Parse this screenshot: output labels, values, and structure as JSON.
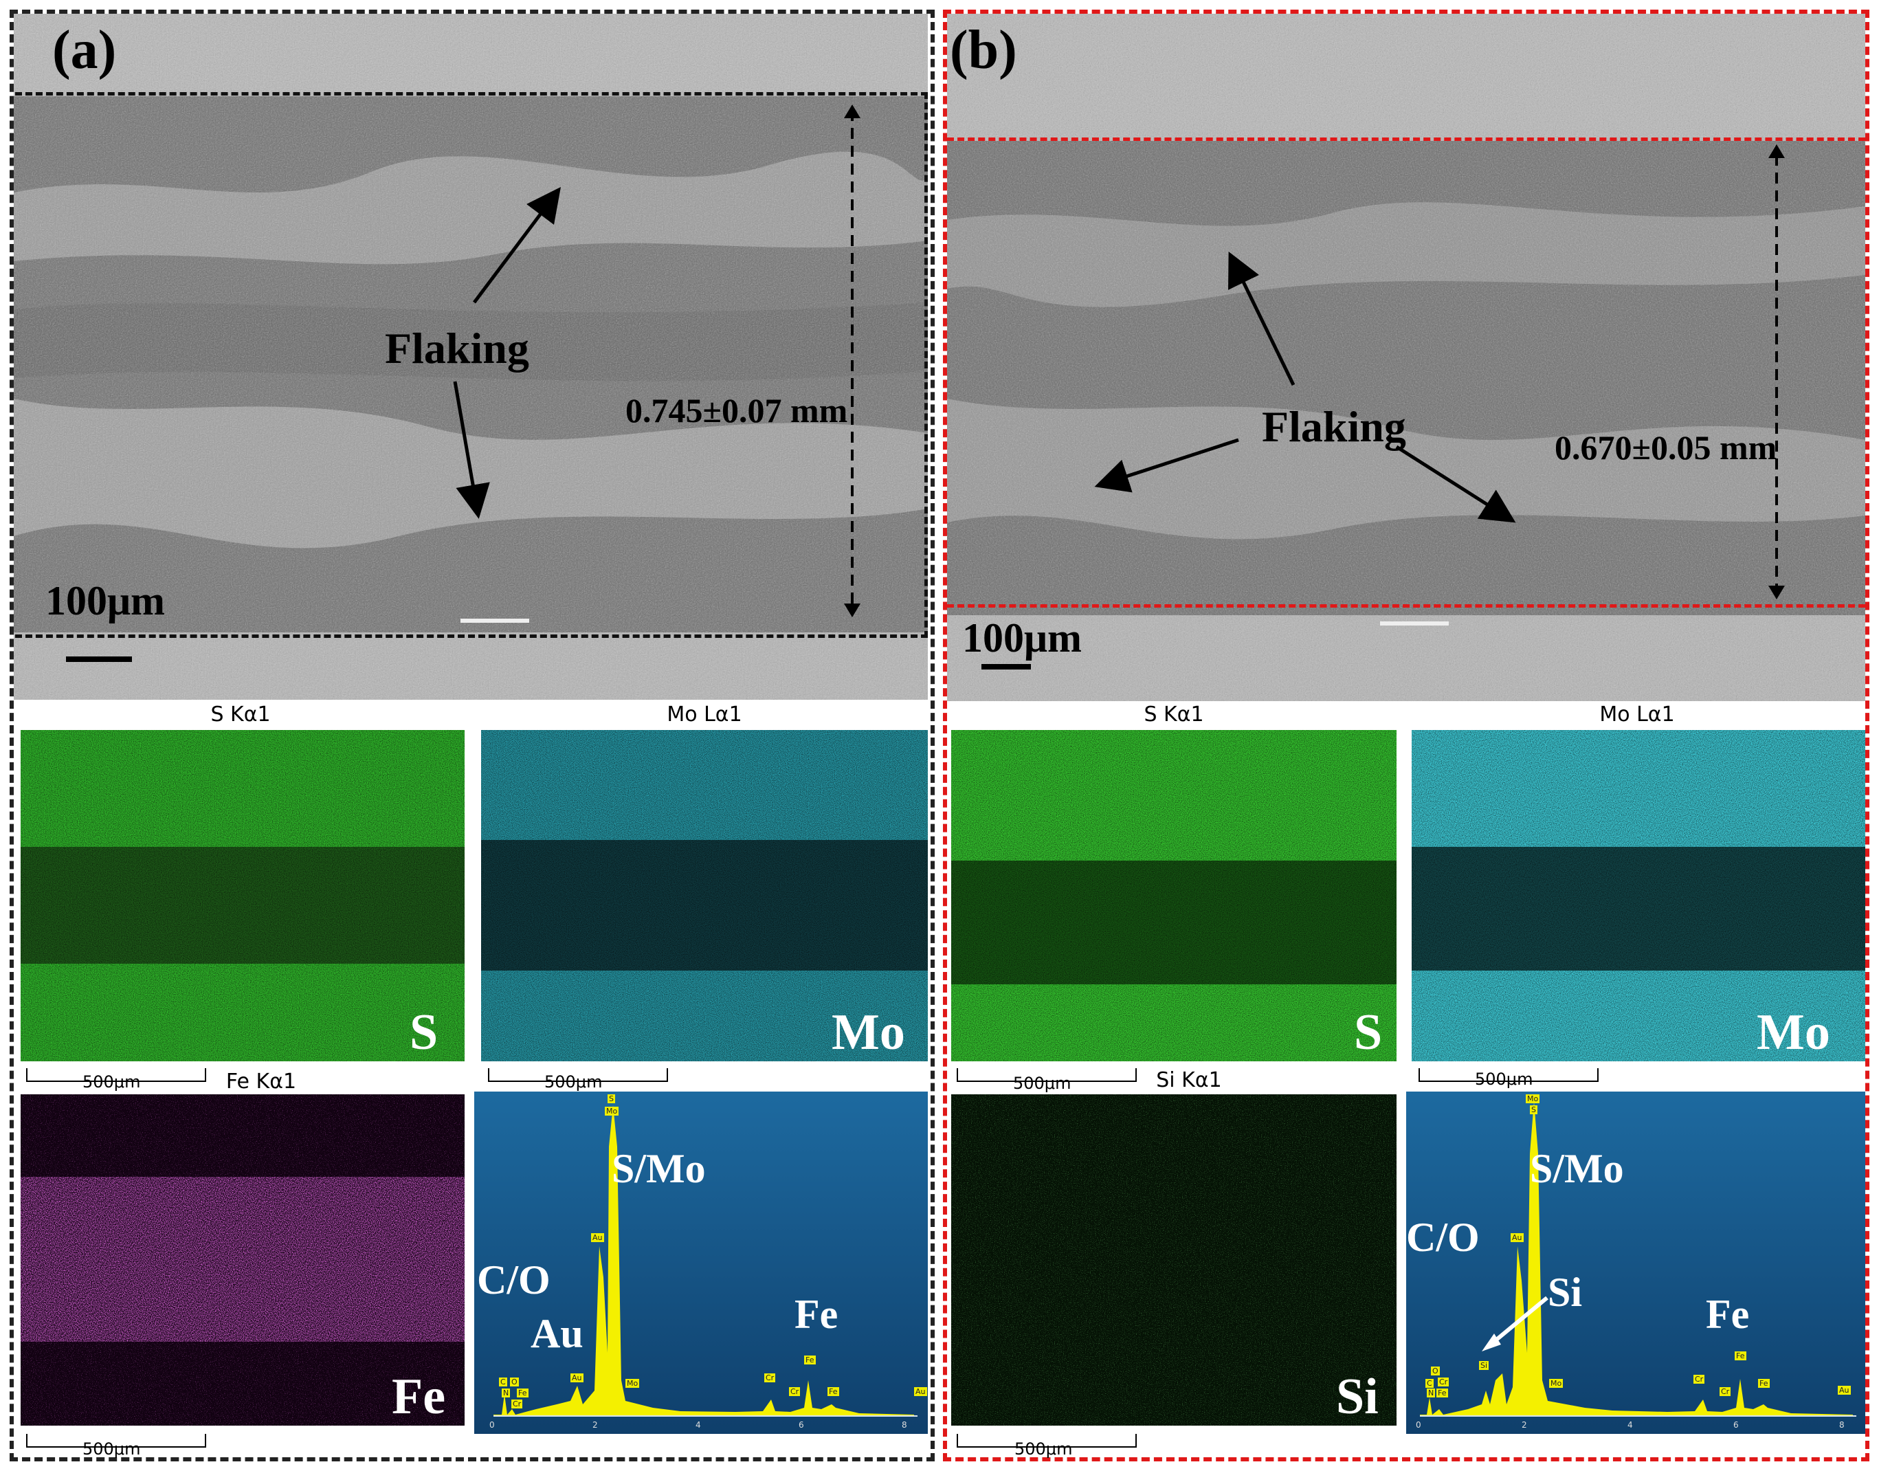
{
  "panel_a": {
    "label": "(a)",
    "flaking": "Flaking",
    "width_measure": "0.745±0.07 mm",
    "scalebar": "100μm",
    "maps": [
      {
        "title": "S Kα1",
        "element": "S",
        "scalebar": "500μm",
        "color": "#2fd52a"
      },
      {
        "title": "Mo Lα1",
        "element": "Mo",
        "scalebar": "500μm",
        "color": "#27a9b8"
      },
      {
        "title": "Fe Kα1",
        "element": "Fe",
        "scalebar": "500μm",
        "color": "#e028e0"
      }
    ],
    "spectrum": {
      "labels": {
        "smo": "S/Mo",
        "co": "C/O",
        "au": "Au",
        "fe": "Fe"
      },
      "peaks": [
        "C",
        "O",
        "N",
        "Fe",
        "Cr",
        "Au",
        "Au",
        "Mo",
        "S",
        "Mo",
        "Cr",
        "Cr",
        "Fe",
        "Fe",
        "Au"
      ],
      "axis_ticks": [
        "0",
        "2",
        "4",
        "6",
        "8"
      ]
    }
  },
  "panel_b": {
    "label": "(b)",
    "flaking": "Flaking",
    "width_measure": "0.670±0.05 mm",
    "scalebar": "100μm",
    "maps": [
      {
        "title": "S Kα1",
        "element": "S",
        "scalebar": "500μm",
        "color": "#2fd52a"
      },
      {
        "title": "Mo Lα1",
        "element": "Mo",
        "scalebar": "500μm",
        "color": "#3bc4d0"
      },
      {
        "title": "Si Kα1",
        "element": "Si",
        "scalebar": "500μm",
        "color": "#1c8a1c"
      }
    ],
    "spectrum": {
      "labels": {
        "smo": "S/Mo",
        "co": "C/O",
        "si": "Si",
        "fe": "Fe"
      },
      "peaks": [
        "C",
        "O",
        "N",
        "Fe",
        "Cr",
        "Si",
        "Au",
        "Mo",
        "S",
        "Mo",
        "Cr",
        "Cr",
        "Fe",
        "Fe",
        "Au"
      ],
      "axis_ticks": [
        "0",
        "2",
        "4",
        "6",
        "8"
      ]
    }
  }
}
